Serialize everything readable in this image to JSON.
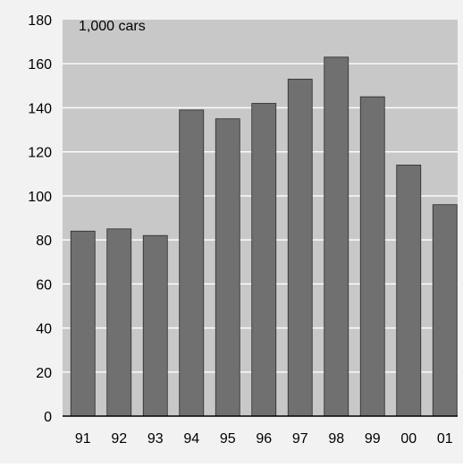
{
  "chart_data": {
    "type": "bar",
    "unit_label": "1,000 cars",
    "categories": [
      "91",
      "92",
      "93",
      "94",
      "95",
      "96",
      "97",
      "98",
      "99",
      "00",
      "01"
    ],
    "values": [
      84,
      85,
      82,
      139,
      135,
      142,
      153,
      163,
      145,
      114,
      96
    ],
    "ylim": [
      0,
      180
    ],
    "yticks": [
      "0",
      "20",
      "40",
      "60",
      "80",
      "100",
      "120",
      "140",
      "160",
      "180"
    ],
    "grid": true,
    "colors": {
      "bar_fill": "#707070",
      "plot_background": "#c8c8c8",
      "outer_background": "#f2f2f2",
      "grid": "#ffffff"
    }
  }
}
